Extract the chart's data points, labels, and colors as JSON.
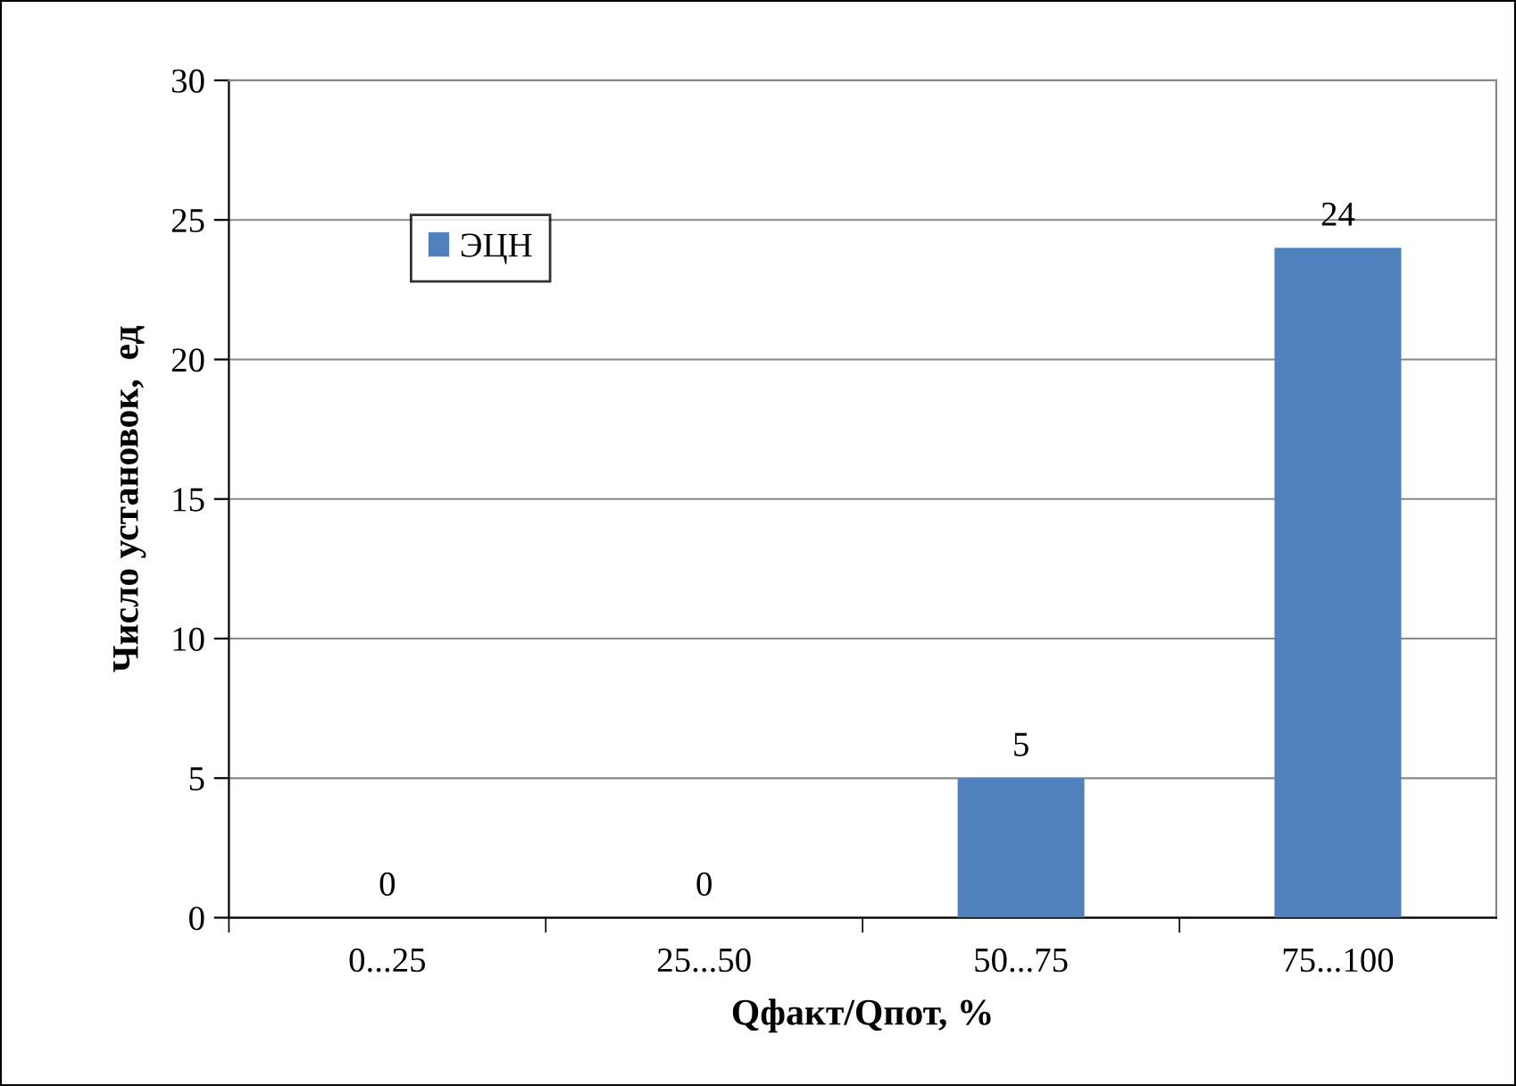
{
  "chart_data": {
    "type": "bar",
    "xlabel": "Qфакт/Qпот, %",
    "ylabel": "Число установок,  ед",
    "categories": [
      "0...25",
      "25...50",
      "50...75",
      "75...100"
    ],
    "series": [
      {
        "name": "ЭЦН",
        "color": "#4f81bd",
        "values": [
          0,
          0,
          5,
          24
        ]
      }
    ],
    "ylim": [
      0,
      30
    ],
    "yticks": [
      0,
      5,
      10,
      15,
      20,
      25,
      30
    ],
    "grid": "y",
    "legend": "top left",
    "data_labels": true
  }
}
